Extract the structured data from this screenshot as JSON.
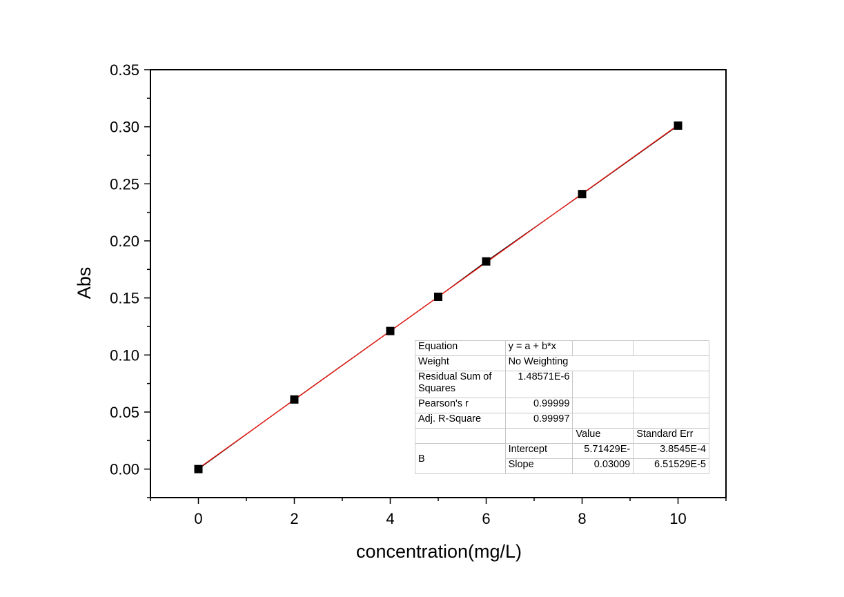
{
  "chart_data": {
    "type": "scatter",
    "xlabel": "concentration(mg/L)",
    "ylabel": "Abs",
    "xlim": [
      -1,
      11
    ],
    "ylim": [
      -0.025,
      0.35
    ],
    "x_ticks": [
      "0",
      "2",
      "4",
      "6",
      "8",
      "10"
    ],
    "y_ticks": [
      "0.00",
      "0.05",
      "0.10",
      "0.15",
      "0.20",
      "0.25",
      "0.30",
      "0.35"
    ],
    "grid": false,
    "series": [
      {
        "x": [
          0,
          2,
          4,
          5,
          6,
          8,
          10
        ],
        "y": [
          0.0,
          0.061,
          0.121,
          0.151,
          0.182,
          0.241,
          0.301
        ],
        "marker": "square",
        "color": "#000000"
      }
    ],
    "fit_line": {
      "x": [
        0,
        10
      ],
      "y": [
        0.000571,
        0.301471
      ],
      "color": "#e8160f"
    }
  },
  "fit_table": {
    "equation_label": "Equation",
    "equation_value": "y = a + b*x",
    "weight_label": "Weight",
    "weight_value": "No Weighting",
    "rss_label": "Residual Sum of Squares",
    "rss_value": "1.48571E-6",
    "pearson_label": "Pearson's r",
    "pearson_value": "0.99999",
    "adjr2_label": "Adj. R-Square",
    "adjr2_value": "0.99997",
    "col_value": "Value",
    "col_stderr": "Standard Err",
    "group_label": "B",
    "intercept_label": "Intercept",
    "intercept_value": "5.71429E-",
    "intercept_err": "3.8545E-4",
    "slope_label": "Slope",
    "slope_value": "0.03009",
    "slope_err": "6.51529E-5"
  }
}
